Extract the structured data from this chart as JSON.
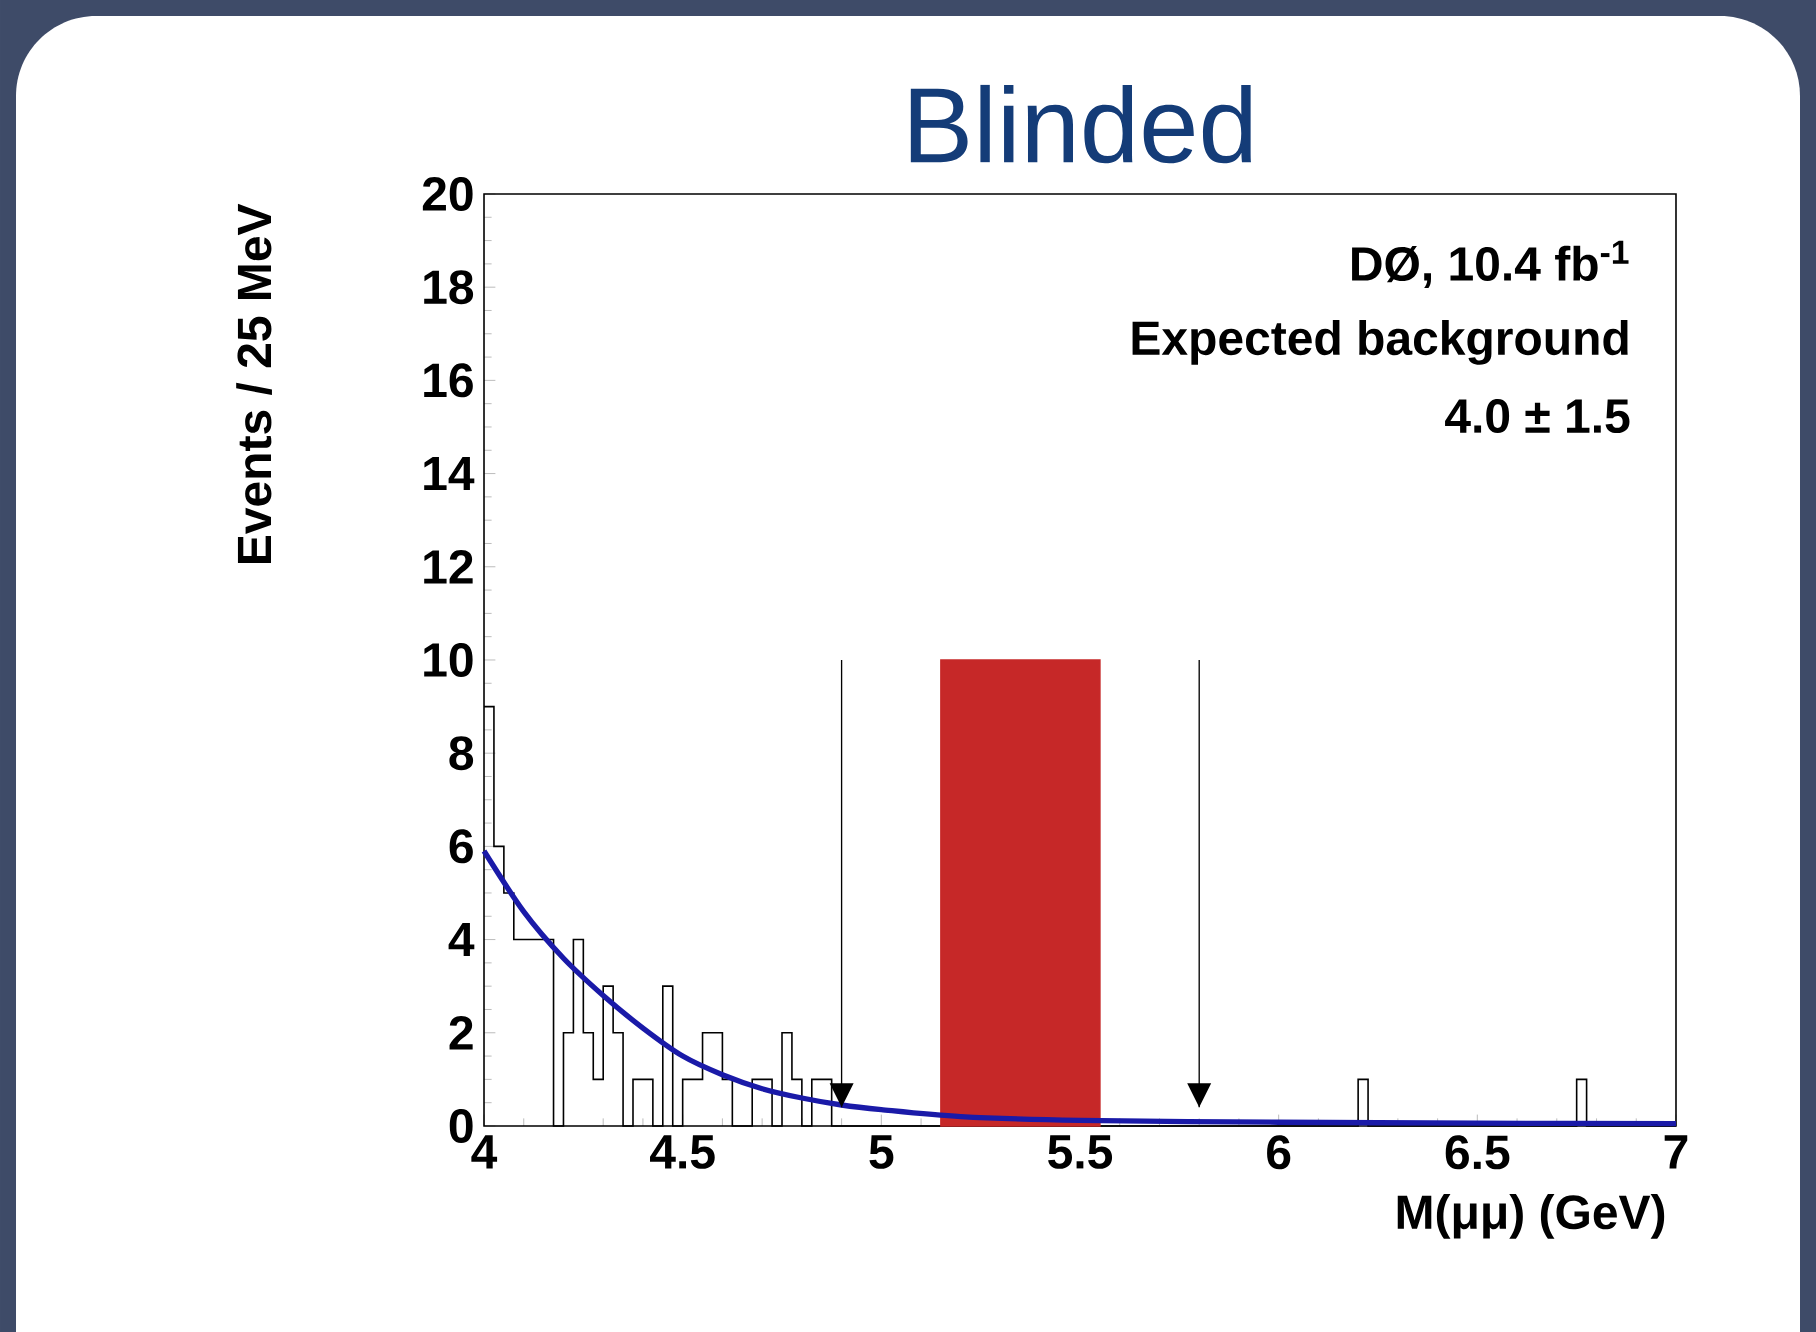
{
  "chart_data": {
    "type": "histogram",
    "title": "Blinded",
    "xlabel": "M(μμ) (GeV)",
    "ylabel": "Events / 25 MeV",
    "xlim": [
      4,
      7
    ],
    "ylim": [
      0,
      20
    ],
    "xticks": [
      4,
      4.5,
      5,
      5.5,
      6,
      6.5,
      7
    ],
    "yticks": [
      0,
      2,
      4,
      6,
      8,
      10,
      12,
      14,
      16,
      18,
      20
    ],
    "annotations": [
      "DØ, 10.4 fb$^{-1}$",
      "Expected background",
      "4.0 ± 1.5"
    ],
    "ref_lines": [
      {
        "axis": "x",
        "value": 4.9
      },
      {
        "axis": "x",
        "value": 5.8
      }
    ],
    "color": "#000000",
    "bins": [
      4,
      4.025,
      4.05,
      4.075,
      4.1,
      4.125,
      4.15,
      4.175,
      4.2,
      4.225,
      4.25,
      4.275,
      4.3,
      4.325,
      4.35,
      4.375,
      4.4,
      4.425,
      4.45,
      4.475,
      4.5,
      4.525,
      4.55,
      4.575,
      4.6,
      4.625,
      4.65,
      4.675,
      4.7,
      4.725,
      4.75,
      4.775,
      4.8,
      4.825,
      4.85,
      4.875,
      4.9,
      4.925,
      4.95,
      4.975,
      5,
      5.025,
      5.05,
      5.075,
      5.1,
      5.125,
      5.15,
      5.175,
      5.2,
      5.225,
      5.25,
      5.275,
      5.3,
      5.325,
      5.35,
      5.375,
      5.4,
      5.425,
      5.45,
      5.475,
      5.5,
      5.525,
      5.55,
      5.575,
      5.6,
      5.625,
      5.65,
      5.675,
      5.7,
      5.725,
      5.75,
      5.775,
      5.8,
      5.825,
      5.85,
      5.875,
      5.9,
      5.925,
      5.95,
      5.975,
      6,
      6.025,
      6.05,
      6.075,
      6.1,
      6.125,
      6.15,
      6.175,
      6.2,
      6.225,
      6.25,
      6.275,
      6.3,
      6.325,
      6.35,
      6.375,
      6.4,
      6.425,
      6.45,
      6.475,
      6.5,
      6.525,
      6.55,
      6.575,
      6.6,
      6.625,
      6.65,
      6.675,
      6.7,
      6.725,
      6.75,
      6.775,
      6.8,
      6.825,
      6.85,
      6.875,
      6.9,
      6.925,
      6.95,
      6.975,
      7
    ],
    "values": [
      9,
      6,
      5,
      4,
      4,
      4,
      4,
      0,
      2,
      4,
      2,
      1,
      3,
      2,
      0,
      1,
      1,
      0,
      3,
      0,
      1,
      1,
      2,
      2,
      1,
      0,
      0,
      1,
      1,
      0,
      2,
      1,
      0,
      1,
      1,
      0,
      0,
      0,
      0,
      0,
      0,
      0,
      0,
      0,
      0,
      0,
      0,
      0,
      0,
      0,
      0,
      0,
      0,
      0,
      0,
      0,
      0,
      0,
      0,
      0,
      0,
      0,
      0,
      0,
      0,
      0,
      0,
      0,
      0,
      0,
      0,
      0,
      0,
      0,
      0,
      0,
      0,
      0,
      0,
      0,
      0,
      0,
      0,
      0,
      0,
      0,
      0,
      0,
      1,
      0,
      0,
      0,
      0,
      0,
      0,
      0,
      0,
      0,
      0,
      0,
      0,
      0,
      0,
      0,
      0,
      0,
      0,
      0,
      0,
      0,
      1,
      0,
      0,
      0,
      0,
      0,
      0,
      0,
      0,
      0
    ],
    "series": [
      {
        "type": "histogram",
        "color": "#c62828",
        "bins": [
          5.15,
          5.55
        ],
        "values": [
          10
        ]
      },
      {
        "type": "line",
        "color": "#1a1aa8",
        "x": [
          4.0,
          4.1,
          4.2,
          4.3,
          4.4,
          4.5,
          4.6,
          4.7,
          4.8,
          4.9,
          5.0,
          5.2,
          5.5,
          6.0,
          6.5,
          7.0
        ],
        "values": [
          5.9,
          4.6,
          3.6,
          2.8,
          2.1,
          1.5,
          1.1,
          0.8,
          0.6,
          0.45,
          0.35,
          0.2,
          0.12,
          0.08,
          0.06,
          0.05
        ]
      }
    ]
  }
}
